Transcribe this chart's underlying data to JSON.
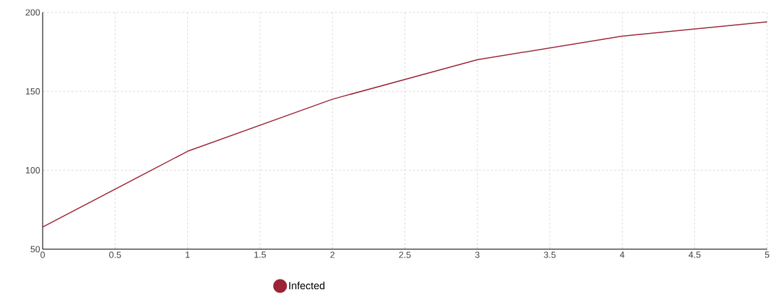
{
  "chart_data": {
    "type": "line",
    "x": [
      0,
      1,
      2,
      3,
      4,
      5
    ],
    "series": [
      {
        "name": "Infected",
        "color": "#9b2335",
        "values": [
          64,
          112,
          145,
          170,
          185,
          194
        ]
      }
    ],
    "xlim": [
      0,
      5
    ],
    "ylim": [
      50,
      200
    ],
    "xticks": [
      0,
      0.5,
      1,
      1.5,
      2,
      2.5,
      3,
      3.5,
      4,
      4.5,
      5
    ],
    "yticks": [
      50,
      100,
      150,
      200
    ],
    "grid": true,
    "legend": "bottom",
    "marker": "none",
    "line_style": "solid"
  }
}
